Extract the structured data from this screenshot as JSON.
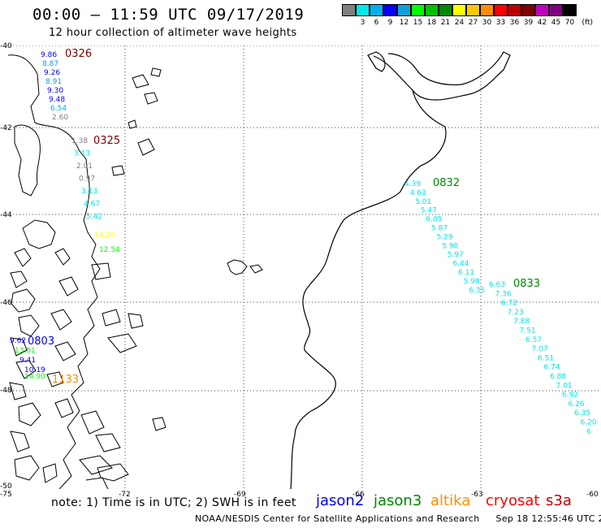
{
  "header": {
    "title": "00:00 – 11:59 UTC 09/17/2019",
    "subtitle": "12 hour collection of altimeter wave heights"
  },
  "color_scale": {
    "unit": "(ft)",
    "bins": [
      {
        "label": "",
        "color": "#808080"
      },
      {
        "label": "3",
        "color": "#00e8e8"
      },
      {
        "label": "6",
        "color": "#00b0f0"
      },
      {
        "label": "9",
        "color": "#0000ff"
      },
      {
        "label": "12",
        "color": "#10a0d8"
      },
      {
        "label": "15",
        "color": "#00ff00"
      },
      {
        "label": "18",
        "color": "#00c000"
      },
      {
        "label": "21",
        "color": "#008800"
      },
      {
        "label": "24",
        "color": "#ffff00"
      },
      {
        "label": "27",
        "color": "#ffc800"
      },
      {
        "label": "30",
        "color": "#ff8c00"
      },
      {
        "label": "33",
        "color": "#ff0000"
      },
      {
        "label": "36",
        "color": "#c00000"
      },
      {
        "label": "39",
        "color": "#800000"
      },
      {
        "label": "42",
        "color": "#c000c0"
      },
      {
        "label": "45",
        "color": "#800080"
      },
      {
        "label": "70",
        "color": "#000000"
      }
    ]
  },
  "map": {
    "lat_labels": [
      "-40",
      "-42",
      "-44",
      "-46",
      "-48",
      "-50"
    ],
    "lon_labels": [
      "-75",
      "-72",
      "-69",
      "-66",
      "-63",
      "-60"
    ],
    "pass_labels": [
      {
        "text": "0326",
        "color": "#800000"
      },
      {
        "text": "0325",
        "color": "#800000"
      },
      {
        "text": "0832",
        "color": "#008800"
      },
      {
        "text": "0833",
        "color": "#008800"
      },
      {
        "text": "0803",
        "color": "#0000ff"
      },
      {
        "text": "1133",
        "color": "#ff8c00"
      }
    ],
    "tracks": [
      {
        "name": "pass-0326",
        "values": [
          {
            "v": "9.86",
            "c": "#0000ff"
          },
          {
            "v": "8.87",
            "c": "#10a0d8"
          },
          {
            "v": "9.26",
            "c": "#0000ff"
          },
          {
            "v": "8.91",
            "c": "#10a0d8"
          },
          {
            "v": "9.30",
            "c": "#0000ff"
          },
          {
            "v": "9.48",
            "c": "#0000ff"
          },
          {
            "v": "6.54",
            "c": "#00b0f0"
          },
          {
            "v": "2.60",
            "c": "#808080"
          }
        ]
      },
      {
        "name": "pass-0325",
        "values": [
          {
            "v": "1.38",
            "c": "#808080"
          },
          {
            "v": "3.13",
            "c": "#00e8e8"
          },
          {
            "v": "2.01",
            "c": "#808080"
          },
          {
            "v": "0.97",
            "c": "#808080"
          },
          {
            "v": "3.13",
            "c": "#00e8e8"
          },
          {
            "v": "4.67",
            "c": "#00e8e8"
          },
          {
            "v": "5.42",
            "c": "#00e8e8"
          }
        ]
      },
      {
        "name": "pass-0325-south",
        "values": [
          {
            "v": "14.50",
            "c": "#ffff00"
          },
          {
            "v": "12.54",
            "c": "#00ff00"
          }
        ]
      },
      {
        "name": "pass-0832",
        "values": [
          {
            "v": "4.39",
            "c": "#00e8e8"
          },
          {
            "v": "4.63",
            "c": "#00e8e8"
          },
          {
            "v": "5.01",
            "c": "#00e8e8"
          },
          {
            "v": "5.47",
            "c": "#00e8e8"
          },
          {
            "v": "6.05",
            "c": "#00e8e8"
          },
          {
            "v": "5.87",
            "c": "#00e8e8"
          },
          {
            "v": "5.29",
            "c": "#00e8e8"
          },
          {
            "v": "5.90",
            "c": "#00e8e8"
          },
          {
            "v": "5.97",
            "c": "#00e8e8"
          },
          {
            "v": "6.44",
            "c": "#00e8e8"
          },
          {
            "v": "6.11",
            "c": "#00e8e8"
          },
          {
            "v": "5.98",
            "c": "#00e8e8"
          },
          {
            "v": "6.35",
            "c": "#00e8e8"
          }
        ]
      },
      {
        "name": "pass-0833",
        "values": [
          {
            "v": "6.63",
            "c": "#00e8e8"
          },
          {
            "v": "7.36",
            "c": "#00e8e8"
          },
          {
            "v": "6.72",
            "c": "#00e8e8"
          },
          {
            "v": "7.23",
            "c": "#00e8e8"
          },
          {
            "v": "7.88",
            "c": "#00e8e8"
          },
          {
            "v": "7.51",
            "c": "#00e8e8"
          },
          {
            "v": "6.57",
            "c": "#00e8e8"
          },
          {
            "v": "7.07",
            "c": "#00e8e8"
          },
          {
            "v": "6.51",
            "c": "#00e8e8"
          },
          {
            "v": "6.74",
            "c": "#00e8e8"
          },
          {
            "v": "6.88",
            "c": "#00e8e8"
          },
          {
            "v": "7.01",
            "c": "#00e8e8"
          },
          {
            "v": "6.92",
            "c": "#00e8e8"
          },
          {
            "v": "6.26",
            "c": "#00e8e8"
          },
          {
            "v": "6.35",
            "c": "#00e8e8"
          },
          {
            "v": "6.20",
            "c": "#00e8e8"
          },
          {
            "v": "6",
            "c": "#00e8e8"
          }
        ]
      },
      {
        "name": "pass-0803",
        "values": [
          {
            "v": "9.62",
            "c": "#0000ff"
          },
          {
            "v": "13.81",
            "c": "#00ff00"
          },
          {
            "v": "9.41",
            "c": "#0000ff"
          },
          {
            "v": "10.19",
            "c": "#0000ff"
          }
        ]
      },
      {
        "name": "pass-1133",
        "values": [
          {
            "v": "14.90",
            "c": "#00ff00"
          }
        ]
      }
    ]
  },
  "footer": {
    "note": "note: 1) Time is in UTC; 2) SWH is in feet",
    "satellites": [
      {
        "name": "jason2",
        "color": "#0000ff"
      },
      {
        "name": "jason3",
        "color": "#008800"
      },
      {
        "name": "altika",
        "color": "#ff8c00"
      },
      {
        "name": "cryosat",
        "color": "#ff0000"
      },
      {
        "name": "s3a",
        "color": "#c00000"
      }
    ],
    "credit": "NOAA/NESDIS Center for Satellite Applications and Research",
    "timestamp": "Sep 18 12:55:46 UTC 2019"
  }
}
